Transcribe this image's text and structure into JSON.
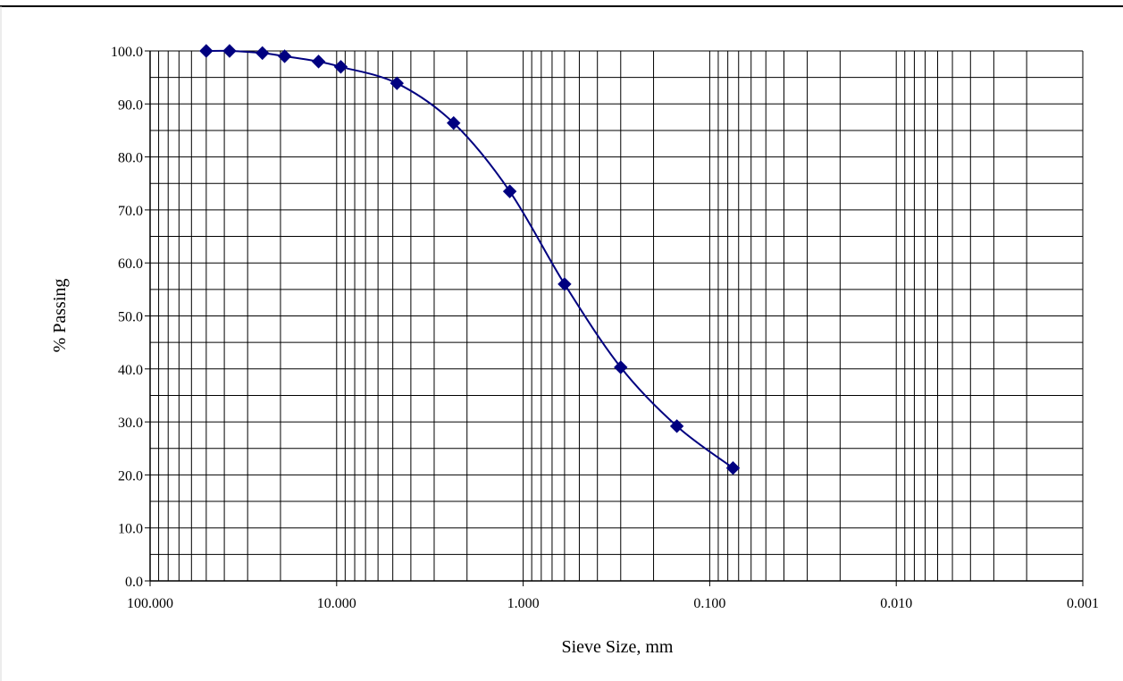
{
  "chart_data": {
    "type": "scatter",
    "title": "",
    "xlabel": "Sieve Size, mm",
    "ylabel": "% Passing",
    "x_scale": "log",
    "x_reversed": true,
    "xlim": [
      100,
      0.001
    ],
    "ylim": [
      0,
      100
    ],
    "x_tick_labels": [
      "100.000",
      "10.000",
      "1.000",
      "0.100",
      "0.010",
      "0.001"
    ],
    "y_tick_labels": [
      "0.0",
      "10.0",
      "20.0",
      "30.0",
      "40.0",
      "50.0",
      "60.0",
      "70.0",
      "80.0",
      "90.0",
      "100.0"
    ],
    "grid": true,
    "legend": "none",
    "series": [
      {
        "color": "#000080",
        "marker": "diamond",
        "line": "smooth",
        "x": [
          50,
          37.5,
          25,
          19,
          12.5,
          9.5,
          4.75,
          2.36,
          1.18,
          0.6,
          0.3,
          0.15,
          0.075
        ],
        "y": [
          100.0,
          100.0,
          99.6,
          99.0,
          98.0,
          97.0,
          93.9,
          86.4,
          73.5,
          56.0,
          40.3,
          29.2,
          21.3
        ]
      }
    ]
  }
}
